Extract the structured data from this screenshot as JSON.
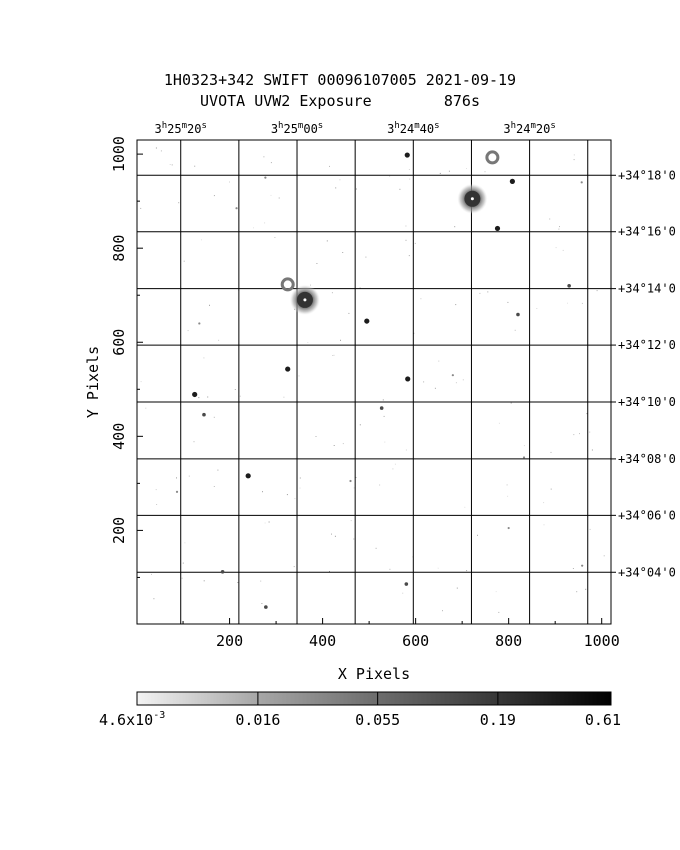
{
  "header": {
    "title": "1H0323+342 SWIFT 00096107005 2021-09-19",
    "subtitle": "UVOTA UVW2 Exposure        876s"
  },
  "chart_data": {
    "type": "heatmap",
    "title": "1H0323+342 SWIFT 00096107005 2021-09-19",
    "subtitle": "UVOTA UVW2 Exposure        876s",
    "xlabel": "X Pixels",
    "ylabel": "Y Pixels",
    "xlim": [
      1,
      1020
    ],
    "ylim": [
      1,
      1030
    ],
    "x_ticks": [
      200,
      400,
      600,
      800,
      1000
    ],
    "y_ticks": [
      200,
      400,
      600,
      800,
      1000
    ],
    "ra_ticks": [
      {
        "h": "3",
        "m": "25",
        "s": "20",
        "x": 95
      },
      {
        "h": "3",
        "m": "25",
        "s": "00",
        "x": 345
      },
      {
        "h": "3",
        "m": "24",
        "s": "40",
        "x": 595
      },
      {
        "h": "3",
        "m": "24",
        "s": "20",
        "x": 845
      }
    ],
    "ra_grid_x": [
      95,
      220,
      345,
      470,
      595,
      720,
      845,
      970
    ],
    "ra_grid_x_bottom": [
      95,
      220,
      345,
      470,
      595,
      720,
      845,
      970
    ],
    "dec_ticks": [
      {
        "label": "+34°18'0",
        "y": 955
      },
      {
        "label": "+34°16'0",
        "y": 835
      },
      {
        "label": "+34°14'0",
        "y": 714
      },
      {
        "label": "+34°12'0",
        "y": 594
      },
      {
        "label": "+34°10'0",
        "y": 473
      },
      {
        "label": "+34°08'0",
        "y": 352
      },
      {
        "label": "+34°06'0",
        "y": 232
      },
      {
        "label": "+34°04'0",
        "y": 111
      }
    ],
    "sources": [
      {
        "x": 722,
        "y": 905,
        "flux": 0.61,
        "size": 3
      },
      {
        "x": 362,
        "y": 690,
        "flux": 0.61,
        "size": 3
      },
      {
        "x": 582,
        "y": 998,
        "flux": 0.19,
        "size": 1
      },
      {
        "x": 808,
        "y": 942,
        "flux": 0.19,
        "size": 1
      },
      {
        "x": 776,
        "y": 842,
        "flux": 0.19,
        "size": 1
      },
      {
        "x": 495,
        "y": 645,
        "flux": 0.19,
        "size": 1
      },
      {
        "x": 325,
        "y": 543,
        "flux": 0.19,
        "size": 1
      },
      {
        "x": 583,
        "y": 522,
        "flux": 0.19,
        "size": 1
      },
      {
        "x": 125,
        "y": 489,
        "flux": 0.19,
        "size": 1
      },
      {
        "x": 145,
        "y": 446,
        "flux": 0.055,
        "size": 1
      },
      {
        "x": 240,
        "y": 316,
        "flux": 0.19,
        "size": 1
      },
      {
        "x": 185,
        "y": 112,
        "flux": 0.055,
        "size": 1
      },
      {
        "x": 580,
        "y": 86,
        "flux": 0.055,
        "size": 1
      },
      {
        "x": 278,
        "y": 37,
        "flux": 0.055,
        "size": 1
      },
      {
        "x": 820,
        "y": 659,
        "flux": 0.055,
        "size": 1
      },
      {
        "x": 930,
        "y": 720,
        "flux": 0.055,
        "size": 1
      },
      {
        "x": 680,
        "y": 530,
        "flux": 0.016,
        "size": 1
      },
      {
        "x": 527,
        "y": 460,
        "flux": 0.055,
        "size": 1
      },
      {
        "x": 957,
        "y": 940,
        "flux": 0.016,
        "size": 1
      },
      {
        "x": 215,
        "y": 885,
        "flux": 0.016,
        "size": 1
      },
      {
        "x": 277,
        "y": 950,
        "flux": 0.016,
        "size": 1
      },
      {
        "x": 833,
        "y": 355,
        "flux": 0.016,
        "size": 1
      },
      {
        "x": 87,
        "y": 282,
        "flux": 0.016,
        "size": 1
      },
      {
        "x": 800,
        "y": 205,
        "flux": 0.016,
        "size": 1
      },
      {
        "x": 460,
        "y": 305,
        "flux": 0.016,
        "size": 1
      },
      {
        "x": 135,
        "y": 640,
        "flux": 0.016,
        "size": 1
      },
      {
        "x": 958,
        "y": 125,
        "flux": 0.016,
        "size": 1
      }
    ],
    "ghost_rings": [
      {
        "x": 765,
        "y": 993
      },
      {
        "x": 325,
        "y": 723
      }
    ],
    "colorbar": {
      "scale": "log",
      "range": [
        0.0046,
        0.61
      ],
      "tick_values": [
        0.016,
        0.055,
        0.19
      ],
      "tick_labels": [
        "4.6x10",
        "0.016",
        "0.055",
        "0.19",
        "0.61"
      ],
      "min_exponent": "-3"
    }
  }
}
